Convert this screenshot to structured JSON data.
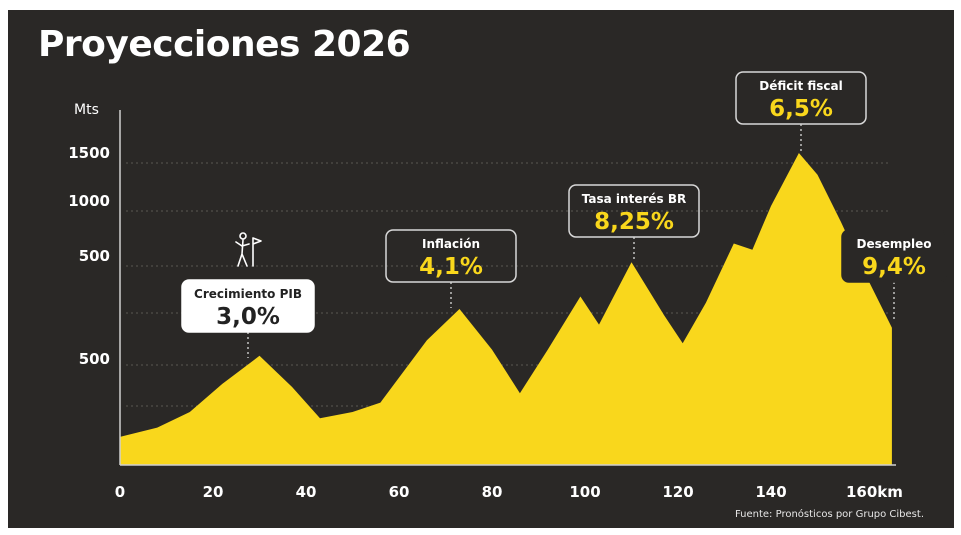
{
  "title": "Proyecciones 2026",
  "source": "Fuente: Pronósticos por Grupo Cibest.",
  "colors": {
    "background": "#2a2826",
    "mountain": "#f9d71c",
    "text": "#ffffff",
    "accent": "#f9d71c"
  },
  "chart_data": {
    "type": "area",
    "ylabel": "Mts",
    "xlabel": "",
    "x_unit": "km",
    "x_ticks": [
      "0",
      "20",
      "40",
      "60",
      "80",
      "100",
      "120",
      "140",
      "160km"
    ],
    "y_ticks": [
      "1500",
      "1000",
      "500",
      "500"
    ],
    "grid": "dotted-horizontal",
    "profile_x_km": [
      0,
      8,
      15,
      22,
      30,
      37,
      43,
      50,
      56,
      60,
      66,
      73,
      80,
      86,
      92,
      99,
      103,
      110,
      117,
      121,
      126,
      132,
      136,
      140,
      146,
      150,
      155,
      160,
      166
    ],
    "profile_y_scale": [
      0.09,
      0.12,
      0.17,
      0.26,
      0.35,
      0.25,
      0.15,
      0.17,
      0.2,
      0.28,
      0.4,
      0.5,
      0.37,
      0.23,
      0.37,
      0.54,
      0.45,
      0.65,
      0.48,
      0.39,
      0.52,
      0.71,
      0.69,
      0.83,
      1.0,
      0.93,
      0.78,
      0.62,
      0.44
    ],
    "annotations": [
      {
        "label": "Crecimiento PIB",
        "value": "3,0%",
        "x_km": 30,
        "style": "white-box",
        "icon": "hiker-flag-icon"
      },
      {
        "label": "Inflación",
        "value": "4,1%",
        "x_km": 73,
        "style": "outline-box"
      },
      {
        "label": "Tasa interés BR",
        "value": "8,25%",
        "x_km": 110,
        "style": "outline-box"
      },
      {
        "label": "Déficit fiscal",
        "value": "6,5%",
        "x_km": 146,
        "style": "outline-box"
      },
      {
        "label": "Desempleo",
        "value": "9,4%",
        "x_km": 166,
        "style": "dark-box"
      }
    ]
  }
}
